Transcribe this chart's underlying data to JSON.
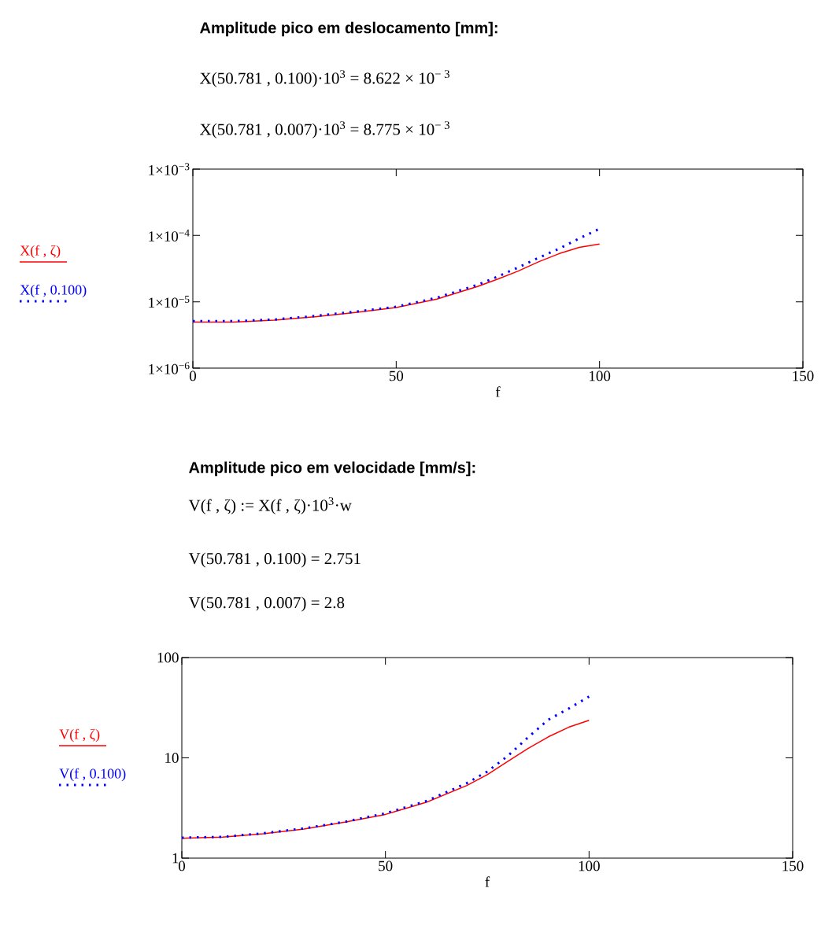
{
  "chart_data": [
    {
      "type": "line",
      "title": "Amplitude pico em deslocamento [mm]:",
      "annotations": [
        "X(50.781 , 0.100)·10$^{3}$ = 8.622 × 10$^{− 3}$",
        "X(50.781 , 0.007)·10$^{3}$ = 8.775 × 10$^{− 3}$"
      ],
      "xlabel": "f",
      "x": [
        0,
        10,
        20,
        30,
        40,
        50,
        60,
        70,
        75,
        80,
        85,
        90,
        95,
        100
      ],
      "series": [
        {
          "name": "X(f , ζ)",
          "color": "#ff0000",
          "line_style": "solid",
          "values": [
            4.95e-06,
            4.95e-06,
            5.3e-06,
            5.95e-06,
            6.9e-06,
            8.2e-06,
            1.1e-05,
            1.7e-05,
            2.2e-05,
            2.9e-05,
            4e-05,
            5.3e-05,
            6.6e-05,
            7.4e-05
          ]
        },
        {
          "name": "X(f , 0.100)",
          "color": "#0000ff",
          "line_style": "dotted",
          "values": [
            5.1e-06,
            5.1e-06,
            5.4e-06,
            6.1e-06,
            7.1e-06,
            8.4e-06,
            1.15e-05,
            1.8e-05,
            2.4e-05,
            3.3e-05,
            4.6e-05,
            6.3e-05,
            9e-05,
            0.000126
          ]
        }
      ],
      "log": "y",
      "xlim": [
        0,
        150
      ],
      "ylim": [
        1e-06,
        0.001
      ],
      "xticks": [
        0,
        50,
        100,
        150
      ],
      "yticks": [
        {
          "value": 1e-06,
          "label": "1×10$^{−6}$"
        },
        {
          "value": 1e-05,
          "label": "1×10$^{−5}$"
        },
        {
          "value": 0.0001,
          "label": "1×10$^{−4}$"
        },
        {
          "value": 0.001,
          "label": "1×10$^{−3}$"
        }
      ],
      "legend": "left"
    },
    {
      "type": "line",
      "title": "Amplitude pico em velocidade [mm/s]:",
      "annotations": [
        "V(f , ζ) := X(f , ζ)·10$^{3}$·w",
        "V(50.781 , 0.100) = 2.751",
        "V(50.781 , 0.007) = 2.8"
      ],
      "xlabel": "f",
      "x": [
        0,
        10,
        20,
        30,
        40,
        50,
        60,
        70,
        75,
        80,
        85,
        90,
        95,
        100
      ],
      "series": [
        {
          "name": "V(f , ζ)",
          "color": "#ff0000",
          "line_style": "solid",
          "values": [
            1.58,
            1.62,
            1.75,
            1.95,
            2.28,
            2.73,
            3.6,
            5.3,
            6.8,
            9.2,
            12.4,
            16.2,
            20.2,
            23.7
          ]
        },
        {
          "name": "V(f , 0.100)",
          "color": "#0000ff",
          "line_style": "dotted",
          "values": [
            1.6,
            1.63,
            1.77,
            1.98,
            2.3,
            2.8,
            3.7,
            5.6,
            7.3,
            10.4,
            16,
            24,
            31,
            40.8
          ]
        }
      ],
      "log": "y",
      "xlim": [
        0,
        150
      ],
      "ylim": [
        1,
        100
      ],
      "xticks": [
        0,
        50,
        100,
        150
      ],
      "yticks": [
        1,
        10,
        100
      ],
      "legend": "left"
    }
  ]
}
